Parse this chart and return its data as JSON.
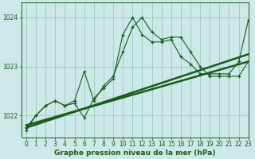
{
  "xlabel": "Graphe pression niveau de la mer (hPa)",
  "ylim": [
    1021.55,
    1024.3
  ],
  "xlim": [
    -0.5,
    23
  ],
  "yticks": [
    1022,
    1023,
    1024
  ],
  "xticks": [
    0,
    1,
    2,
    3,
    4,
    5,
    6,
    7,
    8,
    9,
    10,
    11,
    12,
    13,
    14,
    15,
    16,
    17,
    18,
    19,
    20,
    21,
    22,
    23
  ],
  "bg_color": "#cce8e8",
  "grid_color": "#99ccbb",
  "line_color": "#1a5c1a",
  "trend1_x": [
    0,
    23
  ],
  "trend1_y": [
    1021.8,
    1023.1
  ],
  "trend2_x": [
    0,
    23
  ],
  "trend2_y": [
    1021.75,
    1023.25
  ],
  "line2_x": [
    0,
    1,
    2,
    3,
    4,
    5,
    6,
    7,
    8,
    9,
    10,
    11,
    12,
    13,
    14,
    15,
    16,
    17,
    18,
    19,
    20,
    21,
    22,
    23
  ],
  "line2_y": [
    1021.75,
    1022.0,
    1022.2,
    1022.3,
    1022.2,
    1022.25,
    1021.95,
    1022.35,
    1022.55,
    1022.75,
    1023.65,
    1024.0,
    1023.65,
    1023.5,
    1023.5,
    1023.55,
    1023.2,
    1023.05,
    1022.85,
    1022.85,
    1022.85,
    1022.85,
    1023.1,
    1023.95
  ],
  "line3_x": [
    0,
    1,
    2,
    3,
    4,
    5,
    6,
    7,
    8,
    9,
    10,
    11,
    12,
    13,
    14,
    15,
    16,
    17,
    18,
    19,
    20,
    21,
    22,
    23
  ],
  "line3_y": [
    1021.7,
    1022.0,
    1022.2,
    1022.3,
    1022.2,
    1022.3,
    1022.9,
    1022.3,
    1022.6,
    1022.8,
    1023.3,
    1023.8,
    1024.0,
    1023.7,
    1023.55,
    1023.6,
    1023.6,
    1023.3,
    1023.0,
    1022.8,
    1022.8,
    1022.8,
    1022.8,
    1023.1
  ],
  "xlabel_fontsize": 6.5,
  "tick_fontsize": 5.5
}
